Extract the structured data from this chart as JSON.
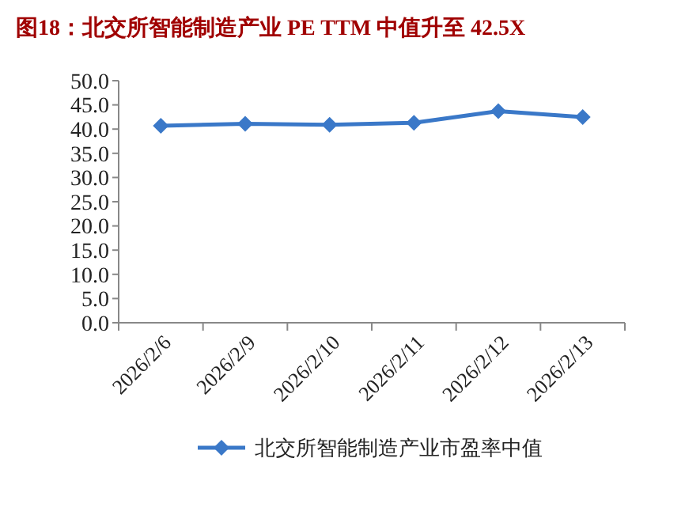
{
  "chart_data": {
    "type": "line",
    "title": "图18：北交所智能制造产业 PE TTM 中值升至 42.5X",
    "categories": [
      "2026/2/6",
      "2026/2/9",
      "2026/2/10",
      "2026/2/11",
      "2026/2/12",
      "2026/2/13"
    ],
    "series": [
      {
        "name": "北交所智能制造产业市盈率中值",
        "color": "#3a78c8",
        "values": [
          40.7,
          41.1,
          40.9,
          41.3,
          43.7,
          42.5
        ]
      }
    ],
    "ylim": [
      0,
      50
    ],
    "yticks": [
      {
        "value": 0,
        "label": "0.0"
      },
      {
        "value": 5,
        "label": "5.0"
      },
      {
        "value": 10,
        "label": "10.0"
      },
      {
        "value": 15,
        "label": "15.0"
      },
      {
        "value": 20,
        "label": "20.0"
      },
      {
        "value": 25,
        "label": "25.0"
      },
      {
        "value": 30,
        "label": "30.0"
      },
      {
        "value": 35,
        "label": "35.0"
      },
      {
        "value": 40,
        "label": "40.0"
      },
      {
        "value": 45,
        "label": "45.0"
      },
      {
        "value": 50,
        "label": "50.0"
      }
    ],
    "marker": "diamond",
    "legend": "bottom",
    "grid": false
  }
}
